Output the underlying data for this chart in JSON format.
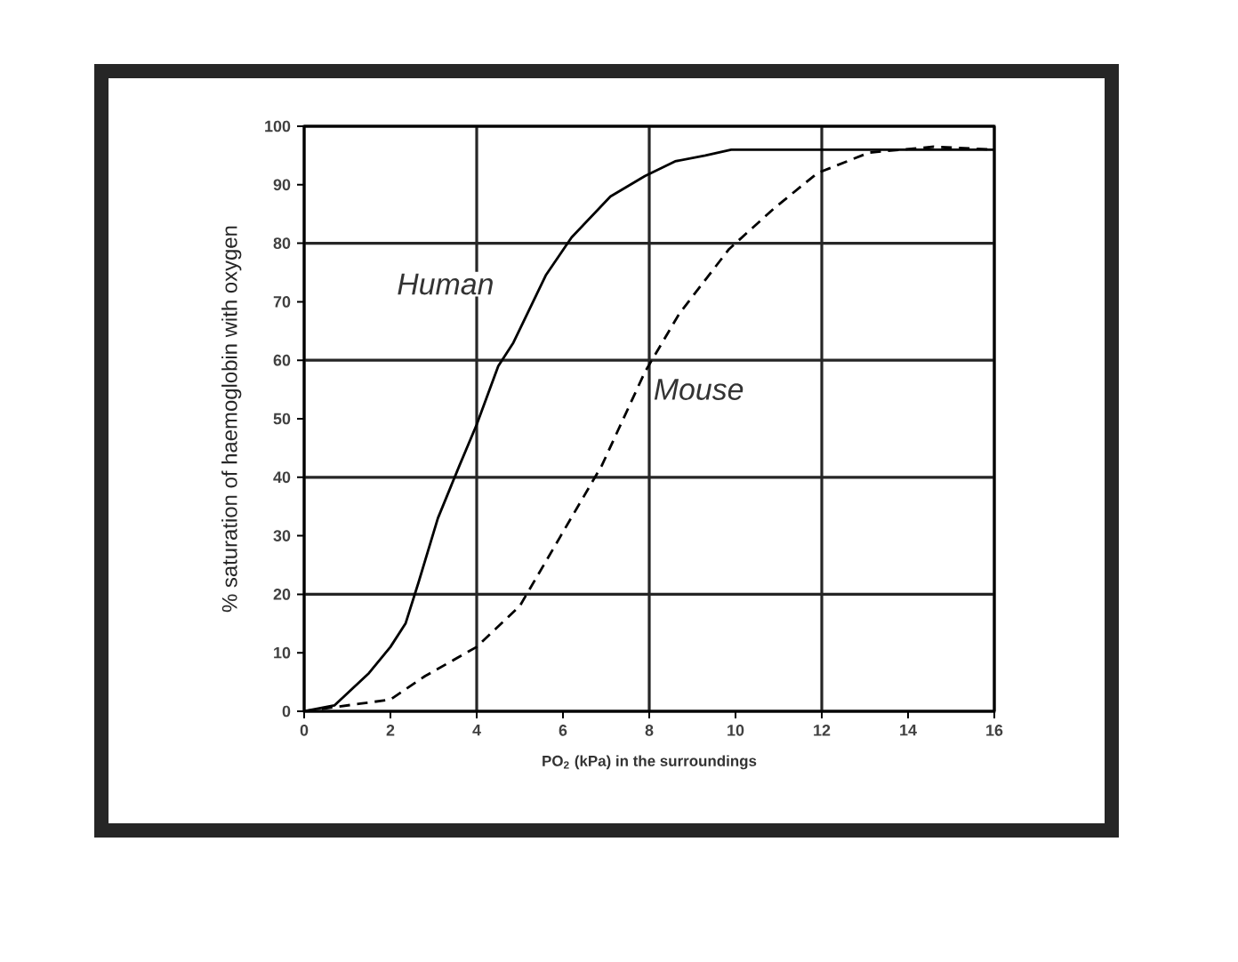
{
  "chart_data": {
    "type": "line",
    "xlabel": "PO$_{2}$ (kPa) in the surroundings",
    "ylabel": "% saturation of haemoglobin with oxygen",
    "xlim": [
      0,
      16
    ],
    "ylim": [
      0,
      100
    ],
    "xticks": [
      0,
      2,
      4,
      6,
      8,
      10,
      12,
      14,
      16
    ],
    "yticks": [
      0,
      10,
      20,
      30,
      40,
      50,
      60,
      70,
      80,
      90,
      100
    ],
    "grid": true,
    "legend": false,
    "marker": "none",
    "series": [
      {
        "name": "Human",
        "color": "#000000",
        "line_style": "solid",
        "x": [
          0,
          0.7,
          1.5,
          2,
          2.35,
          2.65,
          3.1,
          3.6,
          4,
          4.5,
          4.85,
          5.6,
          6.2,
          7.1,
          7.9,
          8.6,
          9.3,
          9.9,
          16
        ],
        "values": [
          0,
          1,
          6.5,
          11,
          15,
          22,
          33,
          42,
          49,
          59,
          63,
          74.5,
          81,
          88,
          91.5,
          94,
          95,
          96,
          96
        ]
      },
      {
        "name": "Mouse",
        "color": "#000000",
        "line_style": "dashed",
        "x": [
          0,
          1.3,
          2,
          2.8,
          4,
          5,
          5.95,
          6.9,
          7.9,
          8.7,
          9.85,
          10.9,
          11.9,
          13.1,
          14.6,
          16
        ],
        "values": [
          0,
          1.3,
          2,
          6,
          11,
          18,
          30,
          42,
          58,
          68,
          79,
          86,
          92,
          95.5,
          96.5,
          96
        ]
      }
    ]
  }
}
